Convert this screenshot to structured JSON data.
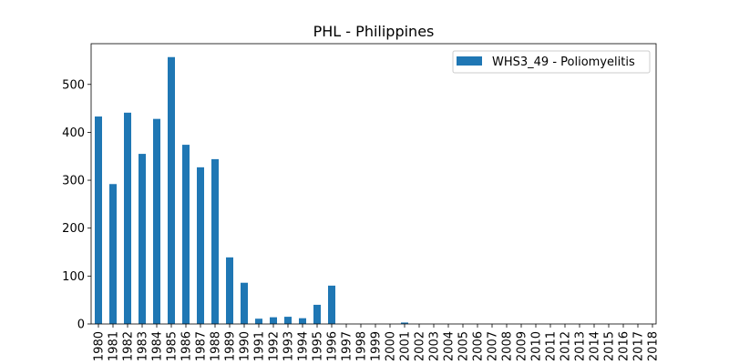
{
  "chart_data": {
    "type": "bar",
    "title": "PHL - Philippines",
    "xlabel": "",
    "ylabel": "",
    "categories": [
      "1980",
      "1981",
      "1982",
      "1983",
      "1984",
      "1985",
      "1986",
      "1987",
      "1988",
      "1989",
      "1990",
      "1991",
      "1992",
      "1993",
      "1994",
      "1995",
      "1996",
      "1997",
      "1998",
      "1999",
      "2000",
      "2001",
      "2002",
      "2003",
      "2004",
      "2005",
      "2006",
      "2007",
      "2008",
      "2009",
      "2010",
      "2011",
      "2012",
      "2013",
      "2014",
      "2015",
      "2016",
      "2017",
      "2018"
    ],
    "series": [
      {
        "name": "WHS3_49 - Poliomyelitis",
        "color": "#1f77b4",
        "values": [
          433,
          292,
          441,
          355,
          428,
          557,
          374,
          327,
          344,
          139,
          86,
          11,
          14,
          15,
          12,
          40,
          80,
          0,
          0,
          0,
          0,
          3,
          0,
          0,
          0,
          0,
          0,
          0,
          0,
          0,
          0,
          0,
          0,
          0,
          0,
          0,
          0,
          0,
          0
        ]
      }
    ],
    "ylim": [
      0,
      585
    ],
    "yticks": [
      0,
      100,
      200,
      300,
      400,
      500
    ],
    "grid": false,
    "legend_position": "top-right"
  }
}
